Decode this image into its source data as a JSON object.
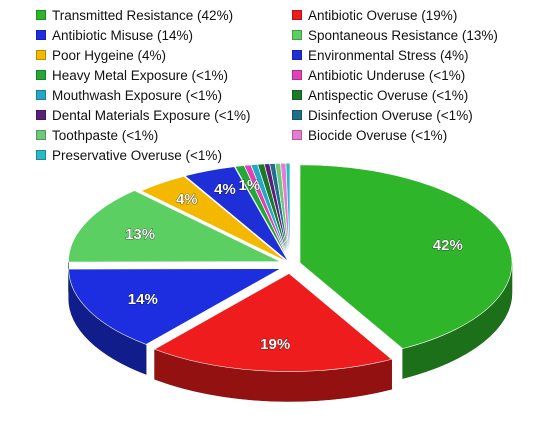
{
  "chart_data": {
    "type": "pie",
    "title": "",
    "legend_position": "top",
    "style": "3d-exploded",
    "slices": [
      {
        "label": "Transmitted Resistance",
        "legend": "Transmitted Resistance (42%)",
        "value": 42,
        "data_label": "42%",
        "color": "#2fb52a"
      },
      {
        "label": "Antibiotic Overuse",
        "legend": "Antibiotic Overuse (19%)",
        "value": 19,
        "data_label": "19%",
        "color": "#ee1c1c"
      },
      {
        "label": "Antibiotic Misuse",
        "legend": "Antibiotic Misuse (14%)",
        "value": 14,
        "data_label": "14%",
        "color": "#1c2ee0"
      },
      {
        "label": "Spontaneous Resistance",
        "legend": "Spontaneous Resistance (13%)",
        "value": 13,
        "data_label": "13%",
        "color": "#5ccf62"
      },
      {
        "label": "Poor Hygeine",
        "legend": "Poor Hygeine (4%)",
        "value": 4,
        "data_label": "4%",
        "color": "#f5b800"
      },
      {
        "label": "Environmental Stress",
        "legend": "Environmental Stress (4%)",
        "value": 4,
        "data_label": "4%",
        "color": "#1f2fd8"
      },
      {
        "label": "Heavy Metal Exposure",
        "legend": "Heavy Metal Exposure (<1%)",
        "value": 0.7,
        "data_label": "1%",
        "color": "#23a838"
      },
      {
        "label": "Antibiotic Underuse",
        "legend": "Antibiotic Underuse (<1%)",
        "value": 0.5,
        "data_label": "",
        "color": "#e040b8"
      },
      {
        "label": "Mouthwash Exposure",
        "legend": "Mouthwash Exposure (<1%)",
        "value": 0.5,
        "data_label": "",
        "color": "#25a8c8"
      },
      {
        "label": "Antispectic Overuse",
        "legend": "Antispectic Overuse (<1%)",
        "value": 0.5,
        "data_label": "",
        "color": "#1a7a2a"
      },
      {
        "label": "Dental Materials Exposure",
        "legend": "Dental Materials Exposure (<1%)",
        "value": 0.4,
        "data_label": "",
        "color": "#5a1f78"
      },
      {
        "label": "Disinfection Overuse",
        "legend": "Disinfection Overuse (<1%)",
        "value": 0.4,
        "data_label": "",
        "color": "#1f6f8a"
      },
      {
        "label": "Toothpaste",
        "legend": "Toothpaste (<1%)",
        "value": 0.4,
        "data_label": "",
        "color": "#6ec87a"
      },
      {
        "label": "Biocide Overuse",
        "legend": "Biocide Overuse (<1%)",
        "value": 0.4,
        "data_label": "",
        "color": "#e87ad0"
      },
      {
        "label": "Preservative Overuse",
        "legend": "Preservative Overuse (<1%)",
        "value": 0.3,
        "data_label": "",
        "color": "#28b8c8"
      }
    ]
  }
}
